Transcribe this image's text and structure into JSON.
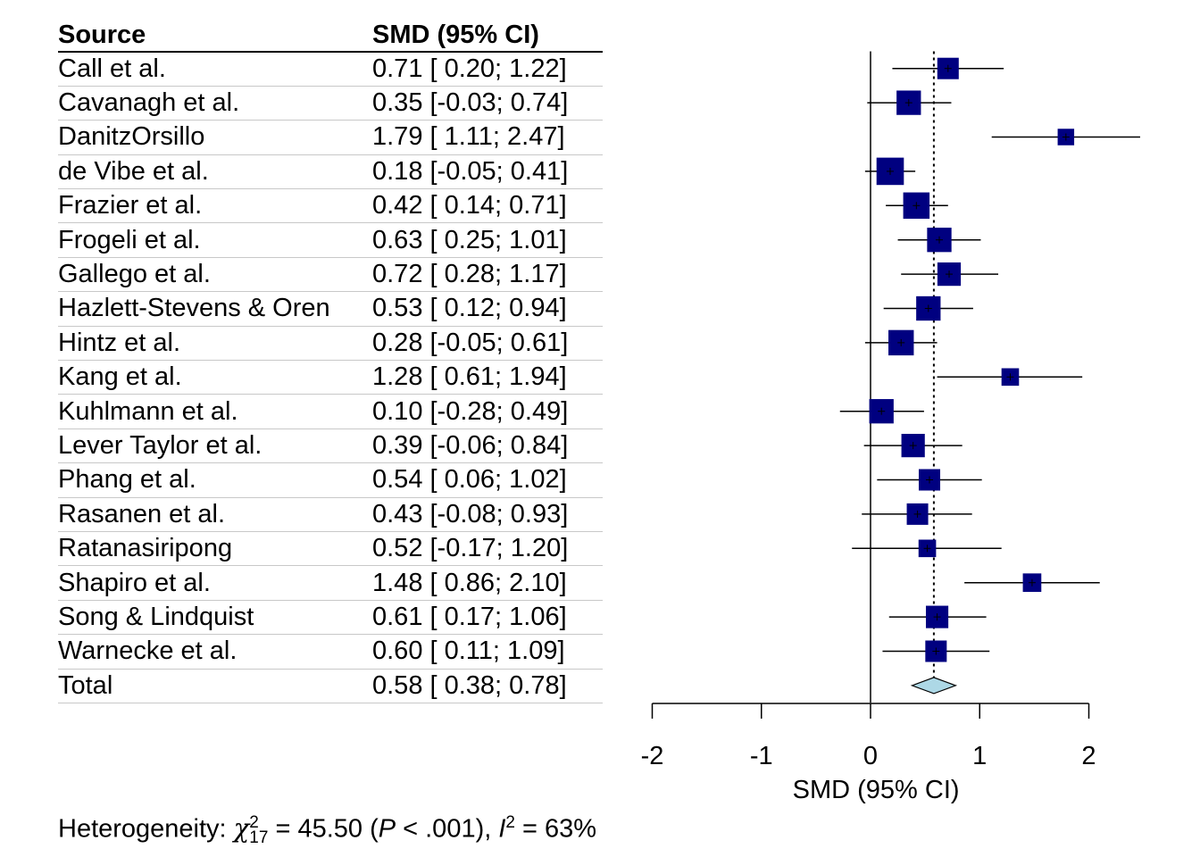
{
  "chart_data": {
    "type": "forest",
    "headers": {
      "source": "Source",
      "smd": "SMD (95% CI)"
    },
    "studies": [
      {
        "source": "Call et al.",
        "smd_text": "0.71 [ 0.20; 1.22]",
        "est": 0.71,
        "lo": 0.2,
        "hi": 1.22,
        "weight": 1.0
      },
      {
        "source": "Cavanagh et al.",
        "smd_text": "0.35 [-0.03; 0.74]",
        "est": 0.35,
        "lo": -0.03,
        "hi": 0.74,
        "weight": 1.15
      },
      {
        "source": "DanitzOrsillo",
        "smd_text": "1.79 [ 1.11; 2.47]",
        "est": 1.79,
        "lo": 1.11,
        "hi": 2.47,
        "weight": 0.75
      },
      {
        "source": "de Vibe et al.",
        "smd_text": "0.18 [-0.05; 0.41]",
        "est": 0.18,
        "lo": -0.05,
        "hi": 0.41,
        "weight": 1.3
      },
      {
        "source": "Frazier et al.",
        "smd_text": "0.42 [ 0.14; 0.71]",
        "est": 0.42,
        "lo": 0.14,
        "hi": 0.71,
        "weight": 1.25
      },
      {
        "source": "Frogeli et al.",
        "smd_text": "0.63 [ 0.25; 1.01]",
        "est": 0.63,
        "lo": 0.25,
        "hi": 1.01,
        "weight": 1.15
      },
      {
        "source": "Gallego et al.",
        "smd_text": "0.72 [ 0.28; 1.17]",
        "est": 0.72,
        "lo": 0.28,
        "hi": 1.17,
        "weight": 1.1
      },
      {
        "source": "Hazlett-Stevens & Oren",
        "smd_text": "0.53 [ 0.12; 0.94]",
        "est": 0.53,
        "lo": 0.12,
        "hi": 0.94,
        "weight": 1.15
      },
      {
        "source": "Hintz et al.",
        "smd_text": "0.28 [-0.05; 0.61]",
        "est": 0.28,
        "lo": -0.05,
        "hi": 0.61,
        "weight": 1.2
      },
      {
        "source": "Kang et al.",
        "smd_text": "1.28 [ 0.61; 1.94]",
        "est": 1.28,
        "lo": 0.61,
        "hi": 1.94,
        "weight": 0.8
      },
      {
        "source": "Kuhlmann et al.",
        "smd_text": "0.10 [-0.28; 0.49]",
        "est": 0.1,
        "lo": -0.28,
        "hi": 0.49,
        "weight": 1.15
      },
      {
        "source": "Lever Taylor et al.",
        "smd_text": "0.39 [-0.06; 0.84]",
        "est": 0.39,
        "lo": -0.06,
        "hi": 0.84,
        "weight": 1.1
      },
      {
        "source": "Phang et al.",
        "smd_text": "0.54 [ 0.06; 1.02]",
        "est": 0.54,
        "lo": 0.06,
        "hi": 1.02,
        "weight": 1.0
      },
      {
        "source": "Rasanen et al.",
        "smd_text": "0.43 [-0.08; 0.93]",
        "est": 0.43,
        "lo": -0.08,
        "hi": 0.93,
        "weight": 1.0
      },
      {
        "source": "Ratanasiripong",
        "smd_text": "0.52 [-0.17; 1.20]",
        "est": 0.52,
        "lo": -0.17,
        "hi": 1.2,
        "weight": 0.8
      },
      {
        "source": "Shapiro et al.",
        "smd_text": "1.48 [ 0.86; 2.10]",
        "est": 1.48,
        "lo": 0.86,
        "hi": 2.1,
        "weight": 0.85
      },
      {
        "source": "Song & Lindquist",
        "smd_text": "0.61 [ 0.17; 1.06]",
        "est": 0.61,
        "lo": 0.17,
        "hi": 1.06,
        "weight": 1.05
      },
      {
        "source": "Warnecke et al.",
        "smd_text": "0.60 [ 0.11; 1.09]",
        "est": 0.6,
        "lo": 0.11,
        "hi": 1.09,
        "weight": 1.0
      }
    ],
    "total": {
      "source": "Total",
      "smd_text": "0.58 [ 0.38; 0.78]",
      "est": 0.58,
      "lo": 0.38,
      "hi": 0.78
    },
    "xlabel": "SMD (95% CI)",
    "xlim": [
      -2,
      2
    ],
    "xticks": [
      "-2",
      "-1",
      "0",
      "1",
      "2"
    ],
    "reference_line": 0,
    "pooled_line": 0.58,
    "heterogeneity": {
      "prefix": "Heterogeneity: ",
      "chi": "χ",
      "df": "17",
      "sup": "2",
      "stat": " = 45.50 (",
      "p": "P",
      "p_val": " < .001), ",
      "i": "I",
      "i_sup": "2",
      "i_val": " = 63%"
    },
    "colors": {
      "square": "#000080",
      "diamond": "#add8e6",
      "line": "#000000"
    }
  }
}
